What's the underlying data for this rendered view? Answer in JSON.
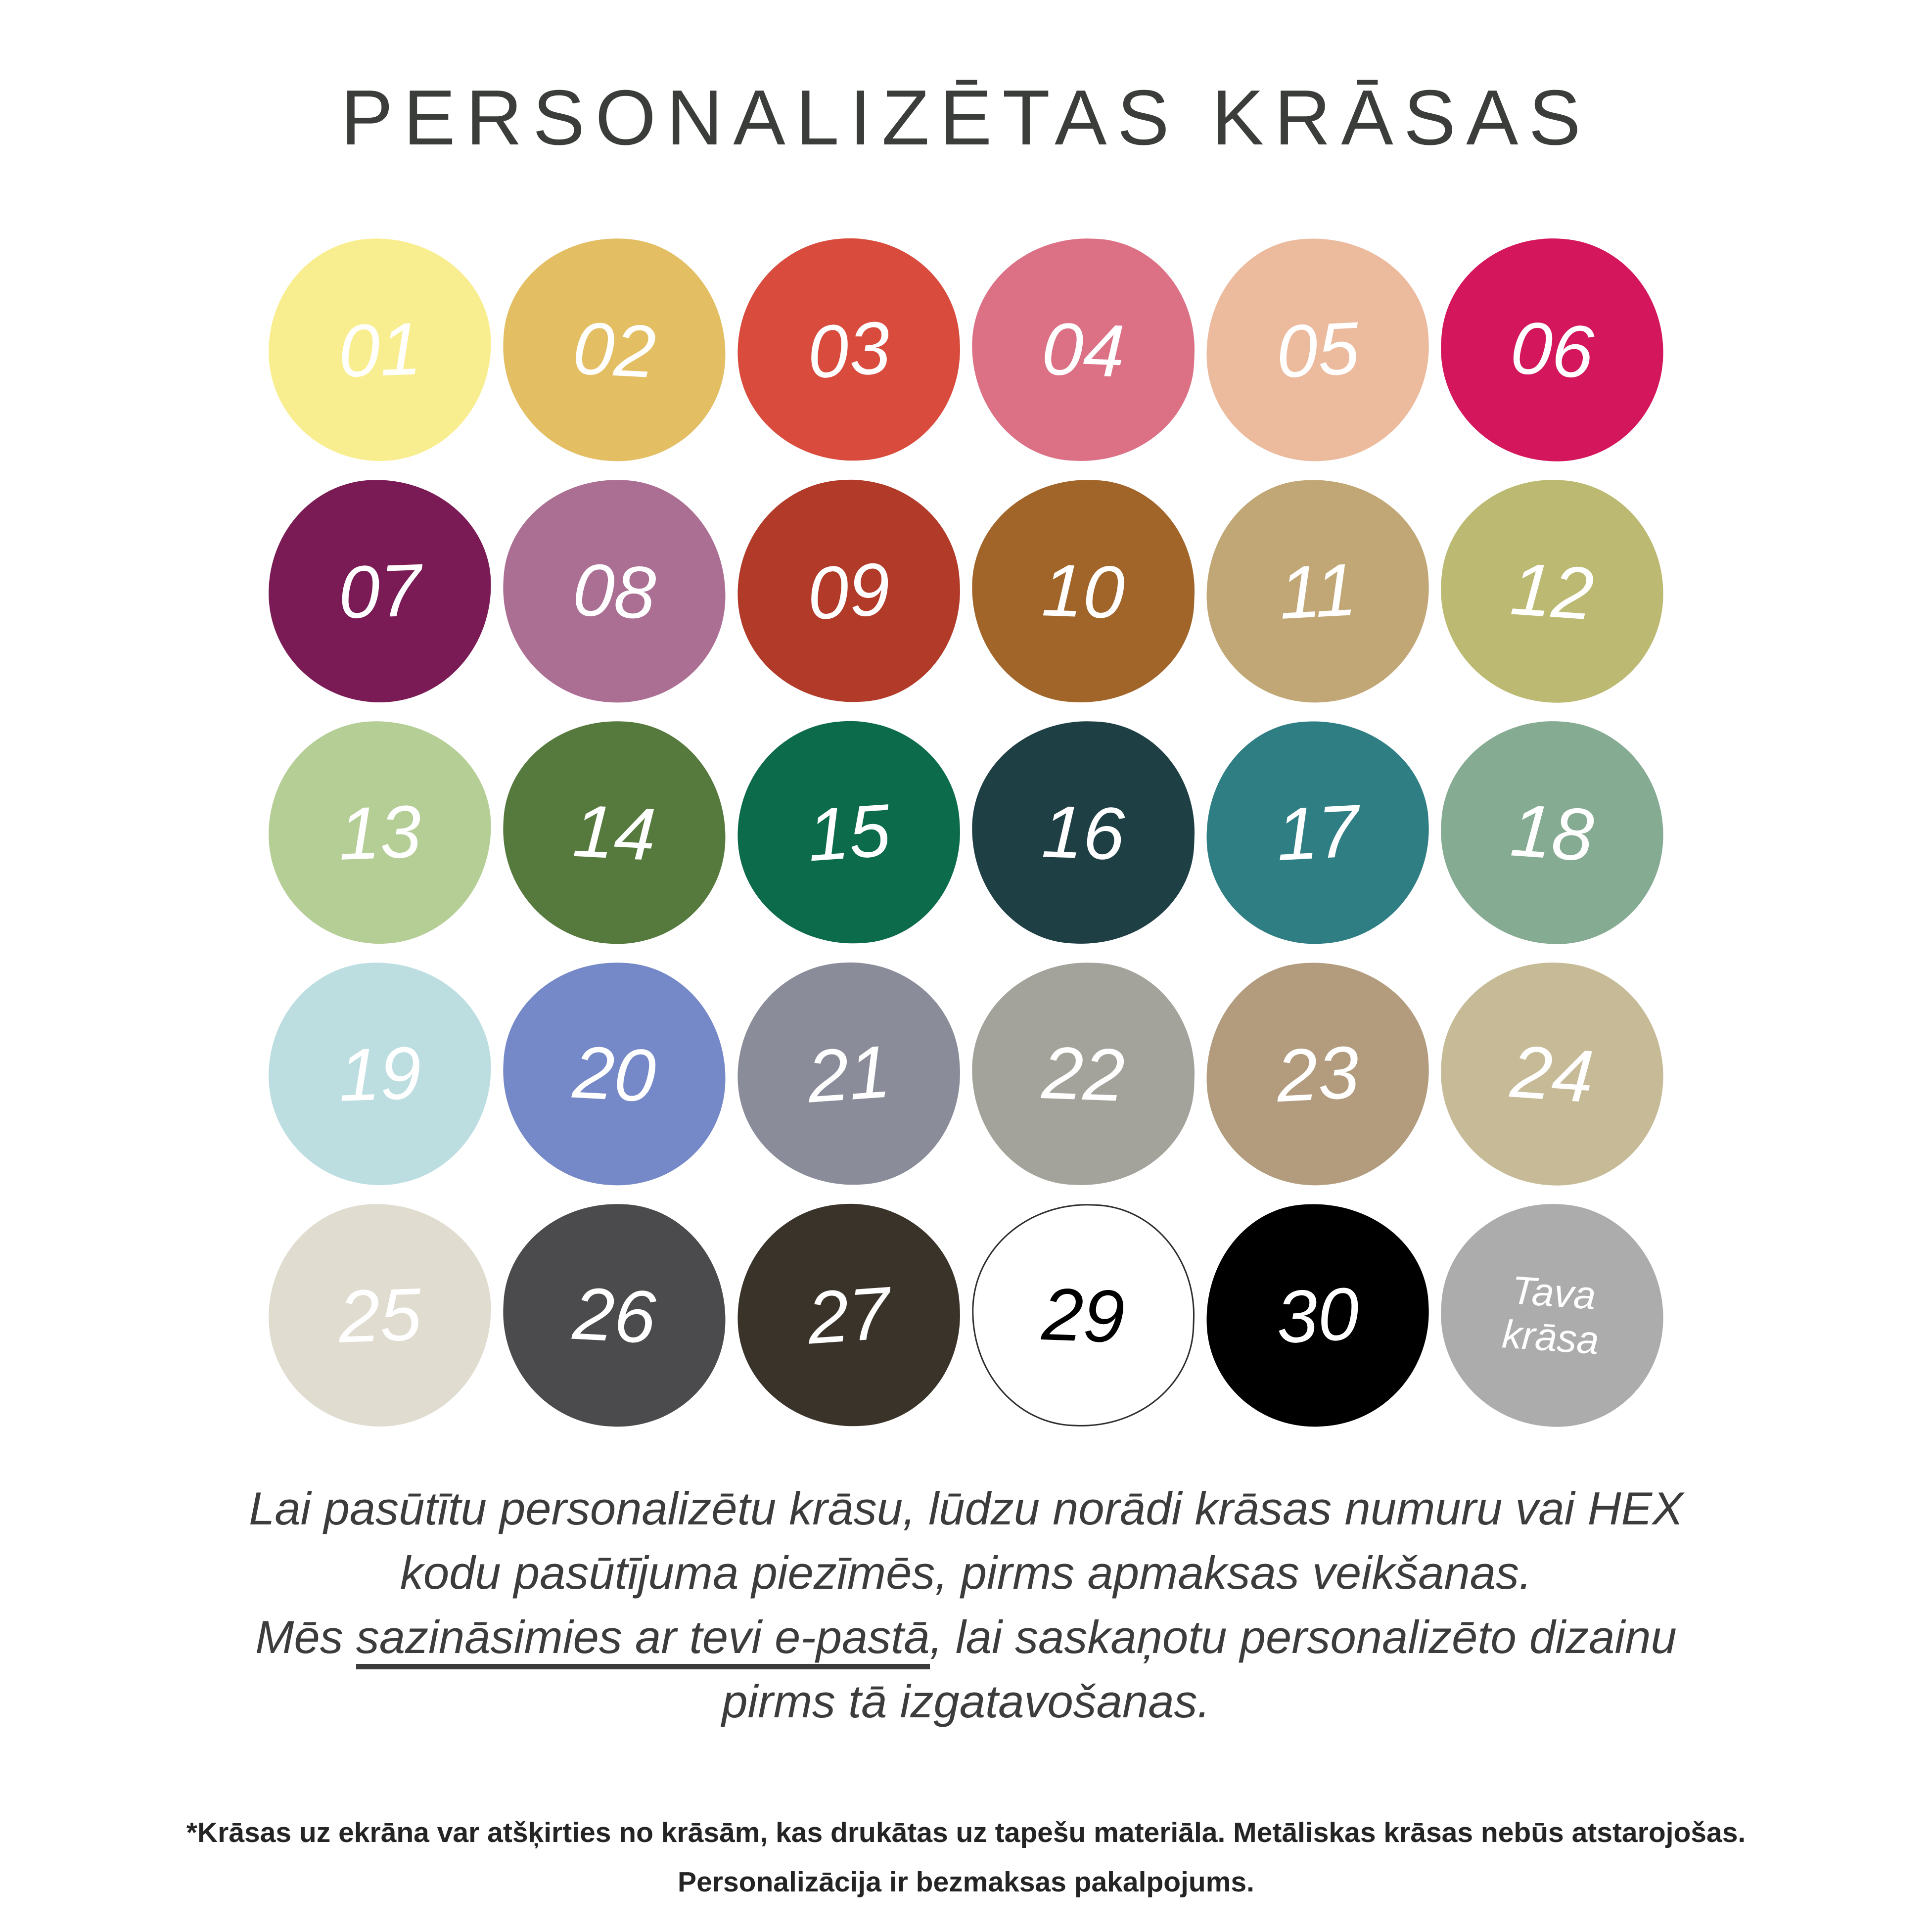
{
  "title": "PERSONALIZĒTAS KRĀSAS",
  "title_color": "#3A3D3A",
  "swatches": [
    {
      "label": "01",
      "bg": "#F9EE8F",
      "fg": "#FFFFFF"
    },
    {
      "label": "02",
      "bg": "#E3BE63",
      "fg": "#FFFFFF"
    },
    {
      "label": "03",
      "bg": "#D84B3D",
      "fg": "#FFFFFF"
    },
    {
      "label": "04",
      "bg": "#DC7186",
      "fg": "#FFFFFF"
    },
    {
      "label": "05",
      "bg": "#ECBA9D",
      "fg": "#FFFFFF"
    },
    {
      "label": "06",
      "bg": "#D4165C",
      "fg": "#FFFFFF"
    },
    {
      "label": "07",
      "bg": "#7B1B55",
      "fg": "#FFFFFF"
    },
    {
      "label": "08",
      "bg": "#AC6F94",
      "fg": "#FFFFFF"
    },
    {
      "label": "09",
      "bg": "#B23A29",
      "fg": "#FFFFFF"
    },
    {
      "label": "10",
      "bg": "#A16429",
      "fg": "#FFFFFF"
    },
    {
      "label": "11",
      "bg": "#C2A776",
      "fg": "#FFFFFF"
    },
    {
      "label": "12",
      "bg": "#BCBA72",
      "fg": "#FFFFFF"
    },
    {
      "label": "13",
      "bg": "#B4CE96",
      "fg": "#FFFFFF"
    },
    {
      "label": "14",
      "bg": "#567A3E",
      "fg": "#FFFFFF"
    },
    {
      "label": "15",
      "bg": "#0B6B4A",
      "fg": "#FFFFFF"
    },
    {
      "label": "16",
      "bg": "#1E3F44",
      "fg": "#FFFFFF"
    },
    {
      "label": "17",
      "bg": "#2E7E83",
      "fg": "#FFFFFF"
    },
    {
      "label": "18",
      "bg": "#85AB92",
      "fg": "#FFFFFF"
    },
    {
      "label": "19",
      "bg": "#BCDEE1",
      "fg": "#FFFFFF"
    },
    {
      "label": "20",
      "bg": "#7588C8",
      "fg": "#FFFFFF"
    },
    {
      "label": "21",
      "bg": "#8A8D99",
      "fg": "#FFFFFF"
    },
    {
      "label": "22",
      "bg": "#A4A39B",
      "fg": "#FFFFFF"
    },
    {
      "label": "23",
      "bg": "#B29C7D",
      "fg": "#FFFFFF"
    },
    {
      "label": "24",
      "bg": "#C7BB97",
      "fg": "#FFFFFF"
    },
    {
      "label": "25",
      "bg": "#E0DCD0",
      "fg": "#FFFFFF"
    },
    {
      "label": "26",
      "bg": "#4B4A4C",
      "fg": "#FFFFFF"
    },
    {
      "label": "27",
      "bg": "#3A332A",
      "fg": "#FFFFFF"
    },
    {
      "label": "29",
      "bg": "#FFFFFF",
      "fg": "#000000",
      "outline": "#2E2E2E"
    },
    {
      "label": "30",
      "bg": "#000000",
      "fg": "#FFFFFF"
    },
    {
      "label_lines": [
        "Tava",
        "krāsa"
      ],
      "bg": "#ACACAC",
      "fg": "#FFFFFF"
    }
  ],
  "paragraph": {
    "line1": "Lai pasūtītu personalizētu krāsu, lūdzu norādi krāsas numuru vai HEX",
    "line2": "kodu pasūtījuma piezīmēs, pirms apmaksas veikšanas.",
    "line3_pre": "Mēs ",
    "line3_underline": "sazināsimies ar tevi e-pastā",
    "line3_post": ", lai saskaņotu personalizēto dizainu",
    "line4": "pirms tā izgatavošanas."
  },
  "footnote": {
    "line1": "*Krāsas uz ekrāna var atšķirties no krāsām, kas drukātas uz tapešu materiāla. Metāliskas krāsas nebūs atstarojošas.",
    "line2": "Personalizācija ir bezmaksas pakalpojums."
  }
}
